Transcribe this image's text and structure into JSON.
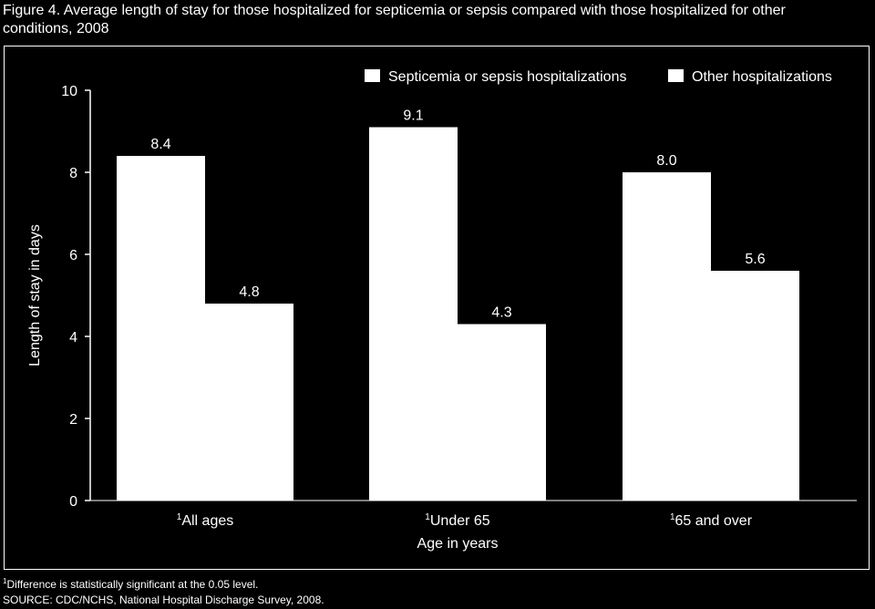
{
  "figure": {
    "title_line1": "Figure 4. Average length of stay for those hospitalized for septicemia or sepsis compared with those hospitalized for other",
    "title_line2": "conditions, 2008",
    "footnote_marker": "1",
    "footnote": "Difference is statistically significant at the 0.05 level.",
    "source": "SOURCE: CDC/NCHS, National Hospital Discharge Survey, 2008."
  },
  "chart_data": {
    "type": "bar",
    "categories": [
      "All ages",
      "Under 65",
      "65 and over"
    ],
    "category_superscripts": [
      "1",
      "1",
      "1"
    ],
    "series": [
      {
        "name": "Septicemia or sepsis hospitalizations",
        "values": [
          8.4,
          9.1,
          8.0
        ]
      },
      {
        "name": "Other hospitalizations",
        "values": [
          4.8,
          4.3,
          5.6
        ]
      }
    ],
    "data_labels": [
      [
        "8.4",
        "9.1",
        "8.0"
      ],
      [
        "4.8",
        "4.3",
        "5.6"
      ]
    ],
    "xlabel": "Age in years",
    "ylabel": "Length of stay in days",
    "ylim": [
      0,
      10
    ],
    "yticks": [
      0,
      2,
      4,
      6,
      8,
      10
    ],
    "legend_position": "top-right",
    "grid": false,
    "colors": {
      "background": "#000000",
      "bars": "#ffffff",
      "text": "#ffffff"
    }
  }
}
